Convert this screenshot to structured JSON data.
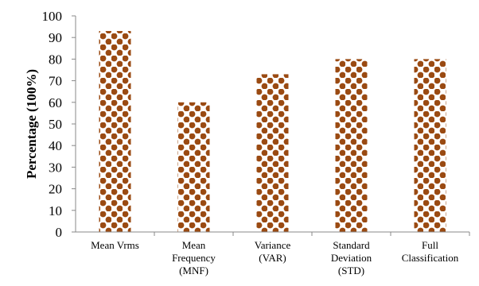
{
  "chart_data": {
    "type": "bar",
    "ylabel": "Percentage (100%)",
    "xlabel": "",
    "ylim": [
      0,
      100
    ],
    "yticks": [
      0,
      10,
      20,
      30,
      40,
      50,
      60,
      70,
      80,
      90,
      100
    ],
    "categories": [
      [
        "Mean Vrms"
      ],
      [
        "Mean",
        "Frequency",
        "(MNF)"
      ],
      [
        "Variance",
        "(VAR)"
      ],
      [
        "Standard",
        "Deviation",
        "(STD)"
      ],
      [
        "Full",
        "Classification"
      ]
    ],
    "values": [
      93,
      60,
      73,
      80,
      80
    ],
    "bar_pattern": "brown-white checkered dots",
    "colors": {
      "bar_dark": "#9a4a12",
      "bar_light": "#ffffff",
      "axis": "#888888"
    },
    "grid": false,
    "legend": "none"
  }
}
